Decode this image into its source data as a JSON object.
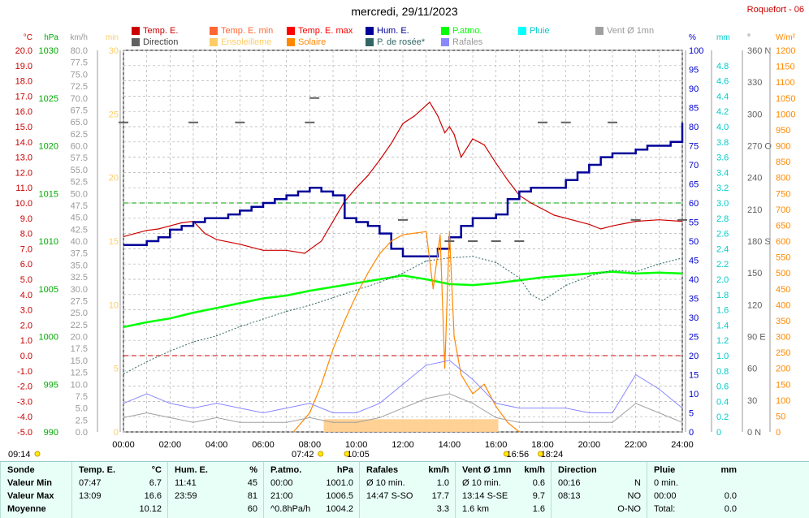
{
  "title": "mercredi, 29/11/2023",
  "station": "Roquefort - 06",
  "legend": [
    {
      "label": "Temp. E.",
      "color": "#cc0000"
    },
    {
      "label": "Temp. E. min",
      "color": "#ff6633"
    },
    {
      "label": "Temp. E. max",
      "color": "#ff0000"
    },
    {
      "label": "Hum. E.",
      "color": "#000099"
    },
    {
      "label": "P.atmo.",
      "color": "#00ff00"
    },
    {
      "label": "Pluie",
      "color": "#00ffff"
    },
    {
      "label": "Vent Ø 1mn",
      "color": "#a0a0a0"
    },
    {
      "label": "Direction",
      "color": "#606060"
    },
    {
      "label": "Ensoleilleme",
      "color": "#ffcc66"
    },
    {
      "label": "Solaire",
      "color": "#ff8800"
    },
    {
      "label": "P. de rosée*",
      "color": "#336666"
    },
    {
      "label": "Rafales",
      "color": "#8888ff"
    }
  ],
  "axis_units": {
    "temp": "°C",
    "press": "hPa",
    "wind": "km/h",
    "sun": "min",
    "hum": "%",
    "rain": "mm",
    "dir": "°",
    "solar": "W/m²"
  },
  "chart_data": {
    "type": "line",
    "x_labels": [
      "00:00",
      "02:00",
      "04:00",
      "06:00",
      "08:00",
      "10:00",
      "12:00",
      "14:00",
      "16:00",
      "18:00",
      "20:00",
      "22:00",
      "24:00"
    ],
    "axes": {
      "temp": {
        "min": -5,
        "max": 20,
        "ticks": [
          "-5.0",
          "-4.0",
          "-3.0",
          "-2.0",
          "-1.0",
          "0.0",
          "1.0",
          "2.0",
          "3.0",
          "4.0",
          "5.0",
          "6.0",
          "7.0",
          "8.0",
          "9.0",
          "10.0",
          "11.0",
          "12.0",
          "13.0",
          "14.0",
          "15.0",
          "16.0",
          "17.0",
          "18.0",
          "19.0",
          "20.0"
        ]
      },
      "press": {
        "min": 990,
        "max": 1030,
        "ticks": [
          "990",
          "995",
          "1000",
          "1005",
          "1010",
          "1015",
          "1020",
          "1025",
          "1030"
        ]
      },
      "wind": {
        "min": 0,
        "max": 80,
        "ticks": [
          "0.0",
          "2.5",
          "5.0",
          "7.5",
          "10.0",
          "12.5",
          "15.0",
          "17.5",
          "20.0",
          "22.5",
          "25.0",
          "27.5",
          "30.0",
          "32.5",
          "35.0",
          "37.5",
          "40.0",
          "42.5",
          "45.0",
          "47.5",
          "50.0",
          "52.5",
          "55.0",
          "57.5",
          "60.0",
          "62.5",
          "65.0",
          "67.5",
          "70.0",
          "72.5",
          "75.0",
          "77.5",
          "80.0"
        ]
      },
      "sun": {
        "min": 0,
        "max": 30,
        "ticks": [
          "0",
          "5",
          "10",
          "15",
          "20",
          "25",
          "30"
        ]
      },
      "hum": {
        "min": 0,
        "max": 100,
        "ticks": [
          "0",
          "5",
          "10",
          "15",
          "20",
          "25",
          "30",
          "35",
          "40",
          "45",
          "50",
          "55",
          "60",
          "65",
          "70",
          "75",
          "80",
          "85",
          "90",
          "95",
          "100"
        ]
      },
      "rain": {
        "min": 0,
        "max": 5,
        "ticks": [
          "0",
          "0.2",
          "0.4",
          "0.6",
          "0.8",
          "1.0",
          "1.2",
          "1.4",
          "1.6",
          "1.8",
          "2.0",
          "2.2",
          "2.4",
          "2.6",
          "2.8",
          "3.0",
          "3.2",
          "3.4",
          "3.6",
          "3.8",
          "4.0",
          "4.2",
          "4.4",
          "4.6",
          "4.8"
        ]
      },
      "dir": {
        "min": 0,
        "max": 360,
        "ticks": [
          "0 N",
          "30",
          "60",
          "90 E",
          "120",
          "150",
          "180 S",
          "210",
          "240",
          "270 O",
          "300",
          "330",
          "360 N"
        ]
      },
      "solar": {
        "min": 0,
        "max": 1200,
        "ticks": [
          "0",
          "50",
          "100",
          "150",
          "200",
          "250",
          "300",
          "350",
          "400",
          "450",
          "500",
          "550",
          "600",
          "650",
          "700",
          "750",
          "800",
          "850",
          "900",
          "950",
          "1000",
          "1050",
          "1100",
          "1150",
          "1200"
        ]
      }
    },
    "series": [
      {
        "name": "Temp. E.",
        "axis": "temp",
        "x": [
          0,
          0.5,
          1,
          1.5,
          2,
          2.5,
          3,
          3.5,
          4,
          5,
          6,
          7,
          7.78,
          8.5,
          9,
          9.5,
          10,
          10.5,
          11,
          11.5,
          12,
          12.5,
          13.15,
          13.5,
          13.8,
          14,
          14.2,
          14.5,
          15,
          15.5,
          16,
          16.5,
          17,
          17.5,
          18,
          18.5,
          19,
          20,
          20.5,
          21,
          22,
          23,
          24
        ],
        "y": [
          7.8,
          8.0,
          8.2,
          8.3,
          8.5,
          8.7,
          8.8,
          8.0,
          7.6,
          7.3,
          6.9,
          6.9,
          6.7,
          7.5,
          8.8,
          10.1,
          11.0,
          11.8,
          12.8,
          13.9,
          15.2,
          15.7,
          16.6,
          15.7,
          14.6,
          15.0,
          14.5,
          13.0,
          14.2,
          13.8,
          12.6,
          11.5,
          10.5,
          10.0,
          9.6,
          9.2,
          9.0,
          8.6,
          8.3,
          8.5,
          8.8,
          8.9,
          8.8
        ]
      },
      {
        "name": "Hum. E.",
        "axis": "hum",
        "x": [
          0,
          0.5,
          1,
          1.5,
          2,
          2.5,
          3,
          3.5,
          4,
          4.5,
          5,
          5.5,
          6,
          6.5,
          7,
          7.5,
          8,
          8.5,
          9,
          9.5,
          10,
          10.5,
          11,
          11.5,
          12,
          12.5,
          13,
          13.5,
          14,
          14.5,
          15,
          15.5,
          16,
          16.5,
          17,
          17.5,
          18,
          18.5,
          19,
          19.5,
          20,
          20.5,
          21,
          21.5,
          22,
          22.5,
          23,
          23.5,
          24
        ],
        "y": [
          49,
          49,
          50,
          51,
          53,
          54,
          55,
          56,
          56,
          57,
          58,
          59,
          60,
          61,
          62,
          63,
          64,
          63,
          62,
          56,
          55,
          54,
          52,
          48,
          46,
          46,
          46,
          48,
          51,
          54,
          56,
          56,
          57,
          61,
          63,
          64,
          64,
          64,
          66,
          68,
          70,
          72,
          73,
          73,
          74,
          75,
          75,
          76,
          81
        ]
      },
      {
        "name": "P.atmo.",
        "axis": "press",
        "x": [
          0,
          1,
          2,
          3,
          4,
          5,
          6,
          7,
          8,
          9,
          10,
          11,
          12,
          13,
          14,
          15,
          16,
          17,
          18,
          19,
          20,
          21,
          22,
          23,
          24
        ],
        "y": [
          1001.0,
          1001.5,
          1001.9,
          1002.5,
          1003.0,
          1003.5,
          1004.0,
          1004.3,
          1004.8,
          1005.2,
          1005.6,
          1006.0,
          1006.4,
          1006.0,
          1005.5,
          1005.4,
          1005.6,
          1005.9,
          1006.2,
          1006.4,
          1006.6,
          1006.8,
          1006.6,
          1006.7,
          1006.6
        ]
      },
      {
        "name": "P. de rosée*",
        "axis": "temp",
        "x": [
          0,
          1,
          2,
          3,
          4,
          5,
          6,
          7,
          8,
          9,
          10,
          11,
          12,
          13,
          14,
          15,
          16,
          17,
          17.5,
          18,
          19,
          20,
          21,
          22,
          23,
          24
        ],
        "y": [
          -1.2,
          -0.4,
          0.3,
          0.9,
          1.3,
          1.9,
          2.4,
          2.9,
          3.3,
          3.8,
          4.3,
          4.8,
          5.4,
          6.2,
          6.4,
          6.5,
          6.1,
          5.1,
          4.0,
          3.6,
          4.6,
          5.2,
          5.6,
          5.5,
          6.0,
          6.4
        ]
      },
      {
        "name": "Solaire",
        "axis": "solar",
        "x": [
          7.3,
          8,
          8.5,
          9,
          9.5,
          10,
          10.5,
          11,
          11.5,
          12,
          12.5,
          13,
          13.3,
          13.6,
          13.8,
          14.0,
          14.2,
          14.5,
          15,
          15.5,
          16,
          16.5,
          17
        ],
        "y": [
          0,
          60,
          150,
          260,
          350,
          430,
          500,
          560,
          600,
          620,
          625,
          630,
          450,
          620,
          200,
          630,
          300,
          180,
          120,
          150,
          80,
          30,
          0
        ]
      },
      {
        "name": "Vent Ø 1mn",
        "axis": "wind",
        "x": [
          0,
          1,
          2,
          3,
          4,
          5,
          6,
          7,
          8,
          9,
          10,
          11,
          12,
          13,
          14,
          15,
          16,
          17,
          18,
          19,
          20,
          21,
          22,
          23,
          24
        ],
        "y": [
          3,
          4,
          3,
          2,
          3,
          2,
          2,
          2,
          3,
          2,
          2,
          3,
          5,
          7,
          8,
          6,
          3,
          2,
          2,
          2,
          2,
          2,
          6,
          4,
          2
        ]
      },
      {
        "name": "Rafales",
        "axis": "wind",
        "x": [
          0,
          1,
          2,
          3,
          4,
          5,
          6,
          7,
          8,
          9,
          10,
          11,
          12,
          13,
          14,
          15,
          16,
          17,
          18,
          19,
          20,
          21,
          22,
          23,
          24
        ],
        "y": [
          6,
          8,
          6,
          5,
          6,
          5,
          4,
          5,
          6,
          4,
          4,
          6,
          10,
          14,
          15,
          11,
          6,
          5,
          5,
          5,
          4,
          4,
          12,
          9,
          5
        ]
      },
      {
        "name": "Direction",
        "axis": "dir",
        "x": [
          0,
          3,
          5,
          8,
          8.2,
          12,
          14,
          15,
          16,
          17,
          18,
          19,
          21,
          22,
          24
        ],
        "y": [
          292,
          292,
          292,
          292,
          315,
          200,
          180,
          180,
          180,
          180,
          292,
          292,
          292,
          200,
          200
        ]
      }
    ],
    "sunshine_band": {
      "from": 8.6,
      "to": 16.1,
      "value": 1
    },
    "reference_lines": [
      {
        "axis": "temp",
        "value": 0,
        "color": "#cc0000"
      },
      {
        "axis": "temp",
        "value": 10,
        "color": "#00aa00"
      }
    ],
    "markers": [
      {
        "label": "09:14",
        "pos": 0
      },
      {
        "label": "07:42",
        "pos": 7.7
      },
      {
        "label": "10:05",
        "pos": 10.08
      },
      {
        "label": "16:56",
        "pos": 16.93
      },
      {
        "label": "18:24",
        "pos": 18.4
      }
    ]
  },
  "footer": {
    "sonde": {
      "header": "Sonde",
      "rows": [
        "Valeur Min",
        "Valeur Max",
        "Moyenne"
      ]
    },
    "temp": {
      "header": "Temp. E.",
      "unit": "°C",
      "rows": [
        [
          "07:47",
          "6.7"
        ],
        [
          "13:09",
          "16.6"
        ],
        [
          "",
          "10.12"
        ]
      ]
    },
    "hum": {
      "header": "Hum. E.",
      "unit": "%",
      "rows": [
        [
          "11:41",
          "45"
        ],
        [
          "23:59",
          "81"
        ],
        [
          "",
          "60"
        ]
      ]
    },
    "press": {
      "header": "P.atmo.",
      "unit": "hPa",
      "rows": [
        [
          "00:00",
          "1001.0"
        ],
        [
          "21:00",
          "1006.5"
        ],
        [
          "^0.8hPa/h",
          "1004.2"
        ]
      ]
    },
    "gust": {
      "header": "Rafales",
      "unit": "km/h",
      "rows": [
        [
          "Ø 10 min.",
          "1.0"
        ],
        [
          "14:47  S-SO",
          "17.7"
        ],
        [
          "",
          "3.3"
        ]
      ]
    },
    "wind": {
      "header": "Vent Ø 1mn",
      "unit": "km/h",
      "rows": [
        [
          "Ø 10 min.",
          "0.6"
        ],
        [
          "13:14  S-SE",
          "9.7"
        ],
        [
          "1.6 km",
          "1.6"
        ]
      ]
    },
    "dir": {
      "header": "Direction",
      "unit": "",
      "rows": [
        [
          "00:16",
          "N"
        ],
        [
          "08:13",
          "NO"
        ],
        [
          "",
          "O-NO"
        ]
      ]
    },
    "rain": {
      "header": "Pluie",
      "unit": "mm",
      "rows": [
        [
          "0 min.",
          ""
        ],
        [
          "00:00",
          "0.0"
        ],
        [
          "Total:",
          "0.0"
        ]
      ]
    }
  }
}
